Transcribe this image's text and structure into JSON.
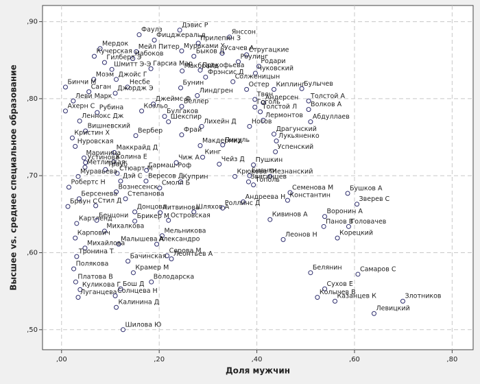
{
  "chart_data": {
    "type": "scatter",
    "x_label": "Доля мужчин",
    "y_label": "Высшее vs. среднее специальное образование",
    "xlim": [
      -0.039,
      0.843
    ],
    "ylim": [
      0.474,
      0.921
    ],
    "xticks": [
      {
        "value": 0,
        "label": ",00"
      },
      {
        "value": 0.2,
        "label": ",20"
      },
      {
        "value": 0.4,
        "label": ",40"
      },
      {
        "value": 0.6,
        "label": ",60"
      },
      {
        "value": 0.8,
        "label": ",80"
      }
    ],
    "yticks": [
      {
        "value": 0.5,
        "label": ",50"
      },
      {
        "value": 0.6,
        "label": ",60"
      },
      {
        "value": 0.7,
        "label": ",70"
      },
      {
        "value": 0.8,
        "label": ",80"
      },
      {
        "value": 0.9,
        "label": ",90"
      }
    ],
    "grid": true,
    "color": "#2b2b6b",
    "labels": [
      "Фаулз",
      "Дэвис Р",
      "Янссон",
      "Прилепин З",
      "Фицджеральд",
      "Мердок",
      "Мураками Х",
      "Быков Д",
      "Усачев А",
      "Стругацкие",
      "Мейл Питер",
      "Кучерская",
      "Набоков",
      "Роулинг",
      "Родари",
      "Гилберт Э",
      "Гарсиа Мар",
      "Макбрайд",
      "Прокофьева",
      "Шмитт Э-Э",
      "Чуковский",
      "Фрэнсис Д",
      "Моэм",
      "Джойс Г",
      "Солженицын",
      "Бинчи М",
      "Несбе",
      "Бунин",
      "Остер",
      "Киплинг",
      "Булычев",
      "Саган",
      "Джордж Э",
      "Линдгрен",
      "Твен",
      "Андерсен",
      "Толстой А",
      "Леви Марк",
      "Джеймс Ф",
      "Веллер",
      "Гоголь",
      "Толстой Л",
      "Волков А",
      "Ахерн С",
      "Рубина",
      "Коэльо",
      "Булгаков",
      "Лермонтов",
      "Абдуллаев",
      "Леннокс Дж",
      "Шекспир",
      "Лихейн Д",
      "Носов",
      "Вишневский",
      "Фрай",
      "Драгунский",
      "Кристин Х",
      "Вербер",
      "Лукьяненко",
      "Нуровская",
      "Макдермид",
      "Пикуль",
      "Успенский",
      "Маккрайд Д",
      "Маринина",
      "Кинг",
      "Устинова",
      "Колина Е",
      "Чиж А",
      "Чейз Д",
      "Пушкин",
      "Метлицкая",
      "Трауб",
      "Стюарт М",
      "Гармаш-Роф",
      "Бианки",
      "Незнанский",
      "Муравьева",
      "Крюкова Т",
      "Дэй С",
      "Вересов Д",
      "Куприн",
      "Звягинцев",
      "Тополь",
      "Робертс Н",
      "Смолл Б",
      "Семенова М",
      "Бушков А",
      "Берсенева",
      "Степанова",
      "Андреева Н",
      "Константин",
      "Зверев С",
      "Браун С",
      "Стил Д",
      "Вознесенск",
      "Донцова",
      "Литвинова",
      "Шляхов А",
      "Роллинс Д",
      "Кивинов А",
      "Воронин А",
      "Картленд",
      "Бенцони",
      "Брикер М",
      "Островская",
      "Михалкова",
      "Панов В",
      "Головачев",
      "Карпович",
      "Мельникова",
      "Леонов Н",
      "Корецкий",
      "Малышева А",
      "Александро",
      "Михайлова",
      "Тронина Т",
      "Серова М",
      "Бачинская",
      "Леонтьев А",
      "Полякова",
      "Крамер М",
      "Белянин",
      "Самаров С",
      "Платова В",
      "Володарска",
      "Сухов Е",
      "Куликова Г",
      "Бош Д",
      "Злотников",
      "Луганцева",
      "Солнцева Н",
      "Колычев В",
      "Казанцев К",
      "Левицкий",
      "Калинина Д",
      "Шилова Ю"
    ],
    "x": [
      0.159,
      0.242,
      0.344,
      0.28,
      0.19,
      0.079,
      0.246,
      0.271,
      0.329,
      0.379,
      0.153,
      0.067,
      0.146,
      0.362,
      0.404,
      0.088,
      0.183,
      0.247,
      0.284,
      0.103,
      0.397,
      0.295,
      0.066,
      0.112,
      0.351,
      0.008,
      0.135,
      0.244,
      0.379,
      0.435,
      0.492,
      0.056,
      0.11,
      0.278,
      0.396,
      0.413,
      0.506,
      0.024,
      0.188,
      0.246,
      0.396,
      0.407,
      0.506,
      0.008,
      0.073,
      0.164,
      0.211,
      0.413,
      0.51,
      0.037,
      0.219,
      0.287,
      0.385,
      0.049,
      0.246,
      0.435,
      0.022,
      0.152,
      0.44,
      0.028,
      0.284,
      0.33,
      0.438,
      0.108,
      0.046,
      0.289,
      0.049,
      0.107,
      0.235,
      0.323,
      0.393,
      0.048,
      0.09,
      0.114,
      0.174,
      0.385,
      0.427,
      0.034,
      0.355,
      0.121,
      0.173,
      0.244,
      0.383,
      0.393,
      0.015,
      0.201,
      0.468,
      0.586,
      0.036,
      0.131,
      0.372,
      0.463,
      0.605,
      0.013,
      0.07,
      0.112,
      0.15,
      0.202,
      0.271,
      0.33,
      0.427,
      0.539,
      0.031,
      0.072,
      0.15,
      0.219,
      0.088,
      0.537,
      0.588,
      0.028,
      0.206,
      0.454,
      0.565,
      0.117,
      0.195,
      0.048,
      0.031,
      0.216,
      0.136,
      0.225,
      0.025,
      0.147,
      0.51,
      0.607,
      0.029,
      0.184,
      0.539,
      0.038,
      0.121,
      0.699,
      0.034,
      0.11,
      0.524,
      0.56,
      0.64,
      0.112,
      0.126
    ],
    "values": [
      0.883,
      0.889,
      0.88,
      0.872,
      0.876,
      0.865,
      0.862,
      0.855,
      0.859,
      0.857,
      0.861,
      0.855,
      0.852,
      0.848,
      0.842,
      0.847,
      0.839,
      0.836,
      0.837,
      0.838,
      0.833,
      0.828,
      0.825,
      0.825,
      0.822,
      0.815,
      0.815,
      0.814,
      0.812,
      0.812,
      0.813,
      0.809,
      0.807,
      0.804,
      0.799,
      0.795,
      0.797,
      0.797,
      0.793,
      0.79,
      0.789,
      0.783,
      0.786,
      0.784,
      0.782,
      0.784,
      0.777,
      0.772,
      0.77,
      0.771,
      0.77,
      0.764,
      0.764,
      0.758,
      0.753,
      0.754,
      0.749,
      0.752,
      0.745,
      0.738,
      0.739,
      0.74,
      0.731,
      0.73,
      0.723,
      0.724,
      0.717,
      0.718,
      0.717,
      0.715,
      0.714,
      0.711,
      0.708,
      0.703,
      0.707,
      0.7,
      0.699,
      0.699,
      0.699,
      0.693,
      0.693,
      0.692,
      0.692,
      0.688,
      0.685,
      0.684,
      0.678,
      0.677,
      0.67,
      0.67,
      0.666,
      0.668,
      0.663,
      0.66,
      0.661,
      0.679,
      0.653,
      0.652,
      0.653,
      0.658,
      0.643,
      0.647,
      0.638,
      0.642,
      0.641,
      0.642,
      0.628,
      0.634,
      0.634,
      0.619,
      0.622,
      0.617,
      0.619,
      0.611,
      0.611,
      0.606,
      0.595,
      0.596,
      0.589,
      0.592,
      0.579,
      0.574,
      0.574,
      0.572,
      0.562,
      0.562,
      0.553,
      0.552,
      0.553,
      0.537,
      0.542,
      0.544,
      0.542,
      0.537,
      0.521,
      0.529,
      0.5
    ]
  }
}
